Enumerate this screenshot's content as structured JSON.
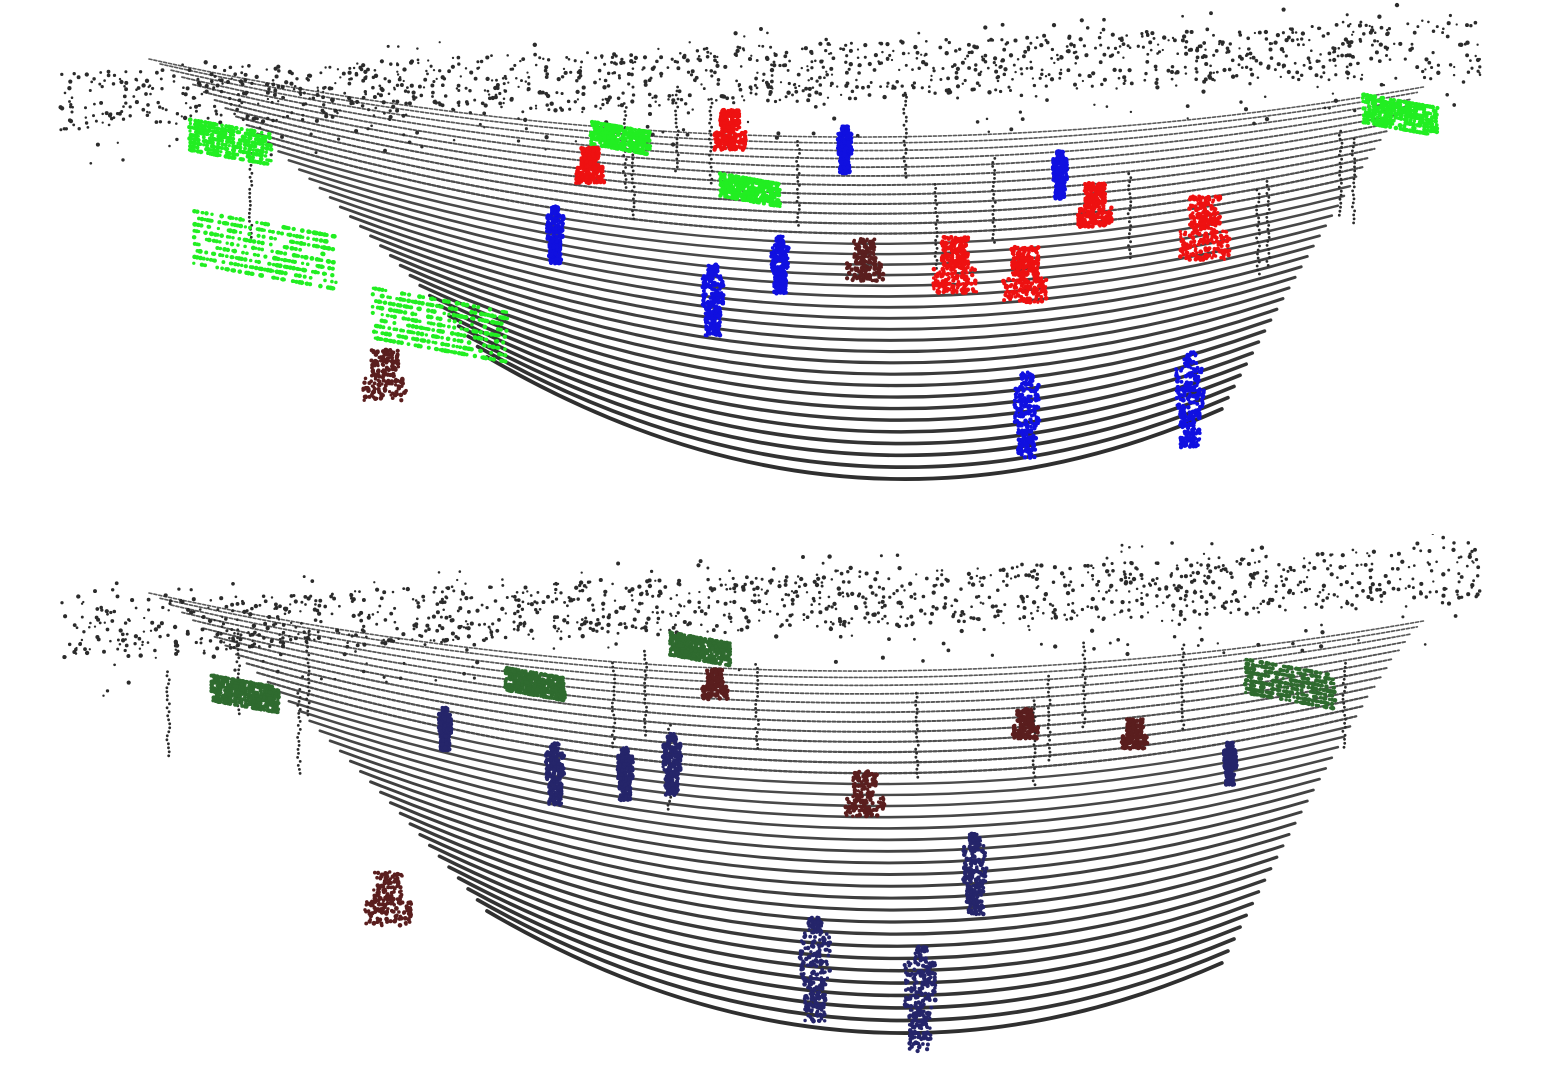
{
  "figure": {
    "panel_count": 2,
    "colors": {
      "background": "#ffffff",
      "ground": "#2b2b2b",
      "pedestrian_bright": "#1010e0",
      "pedestrian_dark": "#25256a",
      "car_bright": "#22ee22",
      "car_dark": "#2f6b2f",
      "cyclist_bright": "#ee1111",
      "cyclist_dark": "#5a1e1e"
    },
    "panels": [
      {
        "name": "top-panel",
        "palette": "bright",
        "objects": [
          {
            "name": "car-object",
            "class": "car"
          },
          {
            "name": "car-object",
            "class": "car"
          },
          {
            "name": "car-object",
            "class": "car"
          },
          {
            "name": "car-object",
            "class": "car"
          },
          {
            "name": "car-object",
            "class": "car"
          },
          {
            "name": "car-object",
            "class": "car"
          },
          {
            "name": "pedestrian-object",
            "class": "pedestrian"
          },
          {
            "name": "pedestrian-object",
            "class": "pedestrian"
          },
          {
            "name": "pedestrian-object",
            "class": "pedestrian"
          },
          {
            "name": "pedestrian-object",
            "class": "pedestrian"
          },
          {
            "name": "pedestrian-object",
            "class": "pedestrian"
          },
          {
            "name": "pedestrian-object",
            "class": "pedestrian"
          },
          {
            "name": "pedestrian-object",
            "class": "pedestrian"
          },
          {
            "name": "cyclist-object",
            "class": "cyclist"
          },
          {
            "name": "cyclist-object",
            "class": "cyclist"
          },
          {
            "name": "cyclist-object",
            "class": "cyclist"
          },
          {
            "name": "cyclist-object",
            "class": "cyclist"
          },
          {
            "name": "cyclist-object",
            "class": "cyclist"
          },
          {
            "name": "cyclist-object",
            "class": "cyclist"
          },
          {
            "name": "other-object",
            "class": "other"
          },
          {
            "name": "other-object",
            "class": "other"
          }
        ]
      },
      {
        "name": "bottom-panel",
        "palette": "dark",
        "objects": [
          {
            "name": "car-object",
            "class": "car"
          },
          {
            "name": "car-object",
            "class": "car"
          },
          {
            "name": "car-object",
            "class": "car"
          },
          {
            "name": "car-object",
            "class": "car"
          },
          {
            "name": "pedestrian-object",
            "class": "pedestrian"
          },
          {
            "name": "pedestrian-object",
            "class": "pedestrian"
          },
          {
            "name": "pedestrian-object",
            "class": "pedestrian"
          },
          {
            "name": "pedestrian-object",
            "class": "pedestrian"
          },
          {
            "name": "pedestrian-object",
            "class": "pedestrian"
          },
          {
            "name": "pedestrian-object",
            "class": "pedestrian"
          },
          {
            "name": "pedestrian-object",
            "class": "pedestrian"
          },
          {
            "name": "pedestrian-object",
            "class": "pedestrian"
          },
          {
            "name": "other-object",
            "class": "other"
          },
          {
            "name": "other-object",
            "class": "other"
          },
          {
            "name": "other-object",
            "class": "other"
          },
          {
            "name": "other-object",
            "class": "other"
          },
          {
            "name": "other-object",
            "class": "other"
          }
        ]
      }
    ]
  }
}
